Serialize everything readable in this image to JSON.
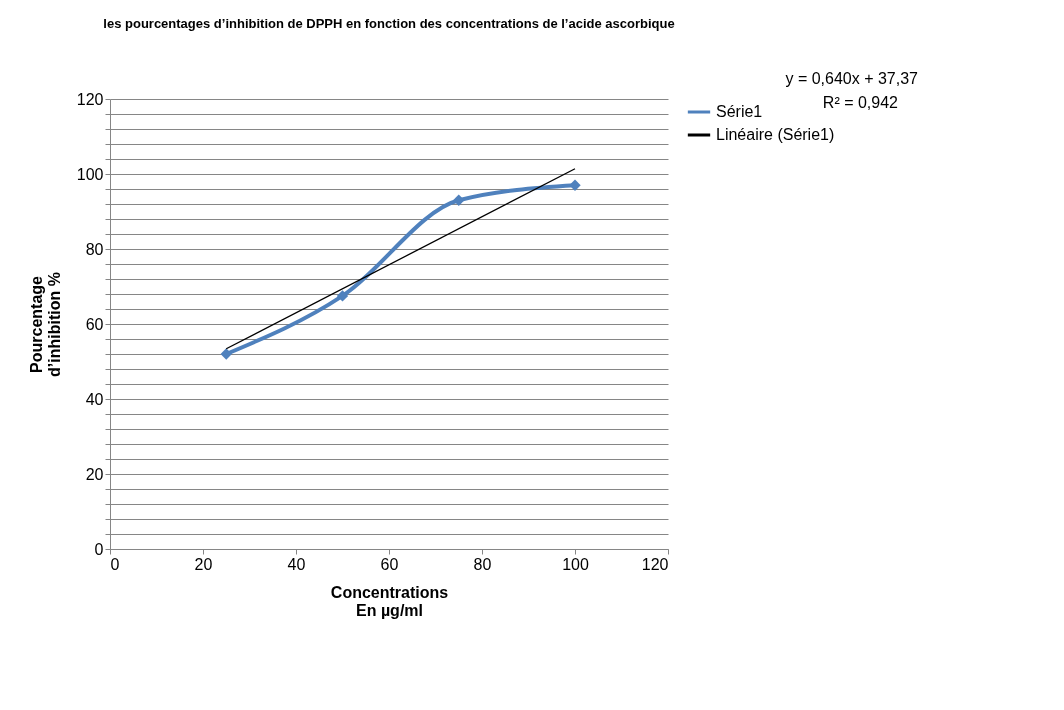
{
  "chart_data": {
    "type": "line",
    "title": "les pourcentages d’inhibition de DPPH en fonction des concentrations de l’acide ascorbique",
    "xlabel": "Concentrations\nEn µg/ml",
    "ylabel": "Pourcentage\nd’inhibition %",
    "x": [
      25,
      50,
      75,
      100
    ],
    "series": [
      {
        "name": "Série1",
        "color": "#4f81bd",
        "values": [
          52,
          67.5,
          93,
          97
        ],
        "marker": "diamond"
      },
      {
        "name": "Linéaire (Série1)",
        "color": "#000000",
        "type": "line",
        "x": [
          25,
          100
        ],
        "values": [
          53.4,
          101.4
        ],
        "marker": "none"
      }
    ],
    "annotations": [
      "y = 0,640x + 37,37",
      "R² = 0,942"
    ],
    "xlim": [
      0,
      120
    ],
    "xticks": [
      0,
      20,
      40,
      60,
      80,
      100,
      120
    ],
    "ylim": [
      0,
      120
    ],
    "yticks": [
      0,
      {
        "value": 4,
        "label": null
      },
      {
        "value": 8,
        "label": null
      },
      {
        "value": 12,
        "label": null
      },
      {
        "value": 16,
        "label": null
      },
      20,
      {
        "value": 24,
        "label": null
      },
      {
        "value": 28,
        "label": null
      },
      {
        "value": 32,
        "label": null
      },
      {
        "value": 36,
        "label": null
      },
      40,
      {
        "value": 44,
        "label": null
      },
      {
        "value": 48,
        "label": null
      },
      {
        "value": 52,
        "label": null
      },
      {
        "value": 56,
        "label": null
      },
      60,
      {
        "value": 64,
        "label": null
      },
      {
        "value": 68,
        "label": null
      },
      {
        "value": 72,
        "label": null
      },
      {
        "value": 76,
        "label": null
      },
      80,
      {
        "value": 84,
        "label": null
      },
      {
        "value": 88,
        "label": null
      },
      {
        "value": 92,
        "label": null
      },
      {
        "value": 96,
        "label": null
      },
      100,
      {
        "value": 104,
        "label": null
      },
      {
        "value": 108,
        "label": null
      },
      {
        "value": 112,
        "label": null
      },
      {
        "value": 116,
        "label": null
      },
      120
    ],
    "grid": "y",
    "legend": "right",
    "line_style": "solid"
  }
}
